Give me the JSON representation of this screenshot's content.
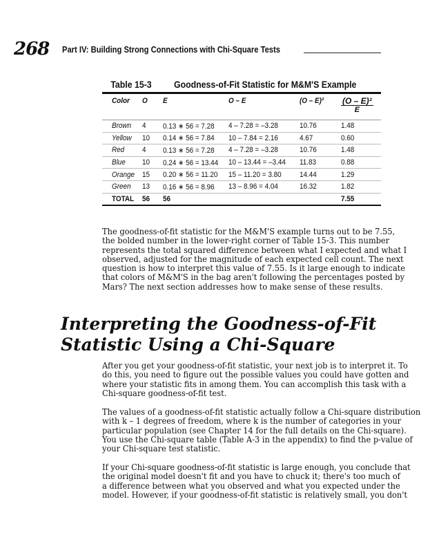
{
  "header": {
    "page_number": "268",
    "running_head": "Part IV: Building Strong Connections with Chi-Square Tests"
  },
  "table": {
    "label": "Table 15-3",
    "title": "Goodness-of-Fit Statistic for M&M'S Example",
    "columns": [
      "Color",
      "O",
      "E",
      "O – E",
      "(O – E)²",
      "(O – E)²",
      "E"
    ],
    "rows": [
      [
        "Brown",
        "4",
        "0.13 ∗ 56 = 7.28",
        "4 – 7.28 = –3.28",
        "10.76",
        "1.48"
      ],
      [
        "Yellow",
        "10",
        "0.14 ∗ 56 = 7.84",
        "10 – 7.84 = 2.16",
        "4.67",
        "0.60"
      ],
      [
        "Red",
        "4",
        "0.13 ∗ 56 = 7.28",
        "4 – 7.28 = –3.28",
        "10.76",
        "1.48"
      ],
      [
        "Blue",
        "10",
        "0.24 ∗ 56 = 13.44",
        "10 – 13.44 = –3.44",
        "11.83",
        "0.88"
      ],
      [
        "Orange",
        "15",
        "0.20 ∗ 56 = 11.20",
        "15 – 11.20 = 3.80",
        "14.44",
        "1.29"
      ],
      [
        "Green",
        "13",
        "0.16 ∗ 56 = 8.96",
        "13 – 8.96 = 4.04",
        "16.32",
        "1.82"
      ]
    ],
    "total": [
      "TOTAL",
      "56",
      "56",
      "",
      "",
      "7.55"
    ]
  },
  "para1": [
    "The goodness-of-fit statistic for the M&M'S example turns out to be 7.55,",
    "the bolded number in the lower-right corner of Table 15-3. This number",
    "represents the total squared difference between what I expected and what I",
    "observed, adjusted for the magnitude of each expected cell count. The next",
    "question is how to interpret this value of 7.55. Is it large enough to indicate",
    "that colors of M&M'S in the bag aren't following the percentages posted by",
    "Mars? The next section addresses how to make sense of these results."
  ],
  "heading": [
    "Interpreting the Goodness-of-Fit",
    "Statistic Using a Chi-Square"
  ],
  "para2": [
    "After you get your goodness-of-fit statistic, your next job is to interpret it. To",
    "do this, you need to figure out the possible values you could have gotten and",
    "where your statistic fits in among them. You can accomplish this task with a",
    "Chi-square goodness-of-fit test."
  ],
  "para3": [
    "The values of a goodness-of-fit statistic actually follow a Chi-square distribution",
    "with k – 1 degrees of freedom, where k is the number of categories in your",
    "particular population (see Chapter 14 for the full details on the Chi-square).",
    "You use the Chi-square table (Table A-3 in the appendix) to find the p-value of",
    "your Chi-square test statistic."
  ],
  "para4": [
    "If your Chi-square goodness-of-fit statistic is large enough, you conclude that",
    "the original model doesn't fit and you have to chuck it; there's too much of",
    "a difference between what you observed and what you expected under the",
    "model. However, if your goodness-of-fit statistic is relatively small, you don't"
  ]
}
